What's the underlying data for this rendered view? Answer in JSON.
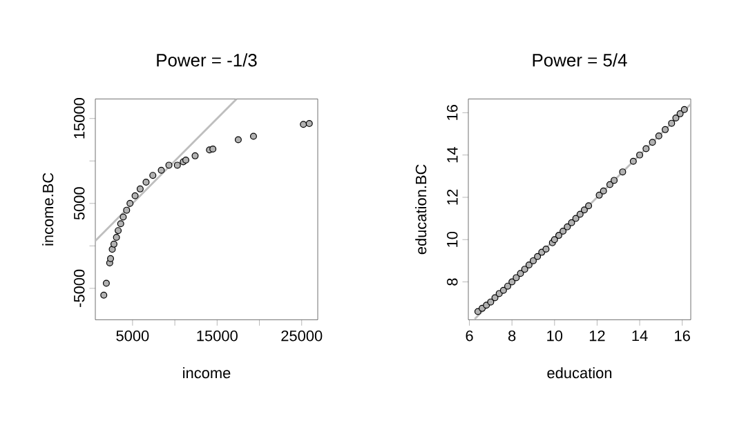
{
  "chart_data": [
    {
      "type": "scatter",
      "title": "Power = -1/3",
      "xlabel": "income",
      "ylabel": "income.BC",
      "xlim": [
        600,
        26900
      ],
      "ylim": [
        -8700,
        17300
      ],
      "xticks": [
        5000,
        {
          "value": 10000,
          "label": null
        },
        15000,
        {
          "value": 20000,
          "label": null
        },
        25000
      ],
      "yticks": [
        -5000,
        {
          "value": 0,
          "label": null
        },
        5000,
        {
          "value": 10000,
          "label": null
        },
        15000
      ],
      "series": [
        {
          "color": "#000000",
          "marker": "circle",
          "x": [
            1600,
            1900,
            2300,
            2400,
            2600,
            2800,
            3100,
            3300,
            3600,
            3900,
            4300,
            4700,
            5300,
            5900,
            6600,
            7400,
            8400,
            9300,
            10300,
            11000,
            11300,
            12400,
            14100,
            14500,
            17500,
            19300,
            25200,
            25900
          ],
          "values": [
            -5800,
            -4400,
            -2000,
            -1500,
            -400,
            200,
            1000,
            1800,
            2600,
            3400,
            4200,
            5000,
            5900,
            6700,
            7500,
            8300,
            8900,
            9500,
            9500,
            9900,
            10100,
            10600,
            11300,
            11400,
            12500,
            12900,
            14300,
            14400
          ]
        },
        {
          "type": "line",
          "marker": "none",
          "color": "#bebebe",
          "x": [
            600,
            17300
          ],
          "values": [
            600,
            17300
          ]
        }
      ]
    },
    {
      "type": "scatter",
      "title": "Power = 5/4",
      "xlabel": "education",
      "ylabel": "education.BC",
      "xlim": [
        5.95,
        16.4
      ],
      "ylim": [
        6.21,
        16.65
      ],
      "xticks": [
        6,
        8,
        10,
        12,
        14,
        16
      ],
      "yticks": [
        8,
        10,
        12,
        14,
        16
      ],
      "series": [
        {
          "color": "#000000",
          "marker": "circle",
          "x": [
            6.4,
            6.6,
            6.8,
            7.0,
            7.2,
            7.4,
            7.6,
            7.8,
            8.0,
            8.2,
            8.4,
            8.6,
            8.8,
            9.0,
            9.2,
            9.4,
            9.6,
            9.9,
            10.0,
            10.2,
            10.4,
            10.6,
            10.8,
            11.0,
            11.2,
            11.4,
            11.6,
            12.1,
            12.3,
            12.6,
            12.8,
            13.2,
            13.7,
            14.0,
            14.3,
            14.6,
            14.9,
            15.2,
            15.5,
            15.7,
            15.9,
            16.1
          ],
          "values": [
            6.6,
            6.75,
            6.9,
            7.05,
            7.25,
            7.45,
            7.6,
            7.8,
            8.0,
            8.2,
            8.4,
            8.6,
            8.8,
            9.0,
            9.2,
            9.4,
            9.55,
            9.85,
            10.0,
            10.2,
            10.4,
            10.6,
            10.8,
            11.0,
            11.2,
            11.4,
            11.6,
            12.1,
            12.3,
            12.6,
            12.8,
            13.2,
            13.7,
            14.0,
            14.3,
            14.6,
            14.9,
            15.2,
            15.5,
            15.75,
            15.95,
            16.15
          ]
        },
        {
          "type": "line",
          "marker": "none",
          "color": "#bebebe",
          "x": [
            6.25,
            16.4
          ],
          "values": [
            6.25,
            16.4
          ]
        }
      ]
    }
  ]
}
